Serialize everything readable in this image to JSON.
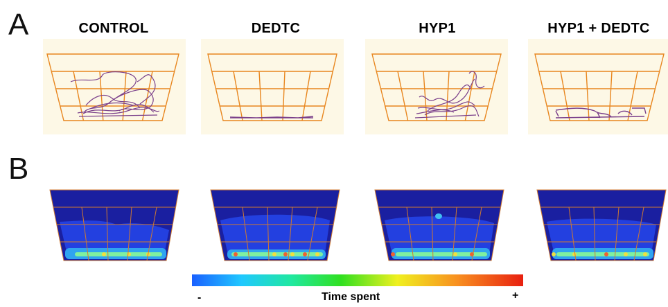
{
  "panels": {
    "a_label": "A",
    "b_label": "B"
  },
  "conditions": [
    {
      "title": "CONTROL"
    },
    {
      "title": "DEDTC"
    },
    {
      "title": "HYP1"
    },
    {
      "title": "HYP1 + DEDTC"
    }
  ],
  "legend": {
    "min_label": "-",
    "title": "Time spent",
    "max_label": "+"
  },
  "colors": {
    "arena_background": "#fdf8e6",
    "grid_line": "#e8861e",
    "track_line": "#7a3f8a",
    "heatmap_background": "#1a1fa0"
  }
}
